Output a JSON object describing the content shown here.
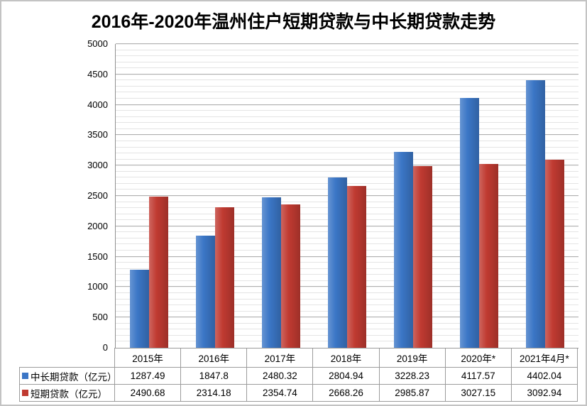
{
  "frame": {
    "background": "#ffffff",
    "border_color": "#c3c3c3",
    "gridline_minor_color": "#e4e4e4",
    "gridline_major_color": "#b0b0b0",
    "axis_color": "#8f8f8f",
    "table_border_color": "#9b9b9b"
  },
  "chart_data": {
    "type": "bar",
    "title": "2016年-2020年温州住户短期贷款与中长期贷款走势",
    "categories": [
      "2015年",
      "2016年",
      "2017年",
      "2018年",
      "2019年",
      "2020年*",
      "2021年4月*"
    ],
    "series": [
      {
        "name": "中长期贷款（亿元）",
        "color": "#3B76C6",
        "values": [
          1287.49,
          1847.8,
          2480.32,
          2804.94,
          3228.23,
          4117.57,
          4402.04
        ],
        "labels": [
          "1287.49",
          "1847.8",
          "2480.32",
          "2804.94",
          "3228.23",
          "4117.57",
          "4402.04"
        ]
      },
      {
        "name": "短期贷款（亿元）",
        "color": "#C03A31",
        "values": [
          2490.68,
          2314.18,
          2354.74,
          2668.26,
          2985.87,
          3027.15,
          3092.94
        ],
        "labels": [
          "2490.68",
          "2314.18",
          "2354.74",
          "2668.26",
          "2985.87",
          "3027.15",
          "3092.94"
        ]
      }
    ],
    "ylim": [
      0,
      5000
    ],
    "y_tick_step": 500,
    "y_minor_step": 100,
    "y_ticks": [
      0,
      500,
      1000,
      1500,
      2000,
      2500,
      3000,
      3500,
      4000,
      4500,
      5000
    ],
    "grid": true,
    "legend_position": "table-left",
    "unit": "亿元"
  }
}
